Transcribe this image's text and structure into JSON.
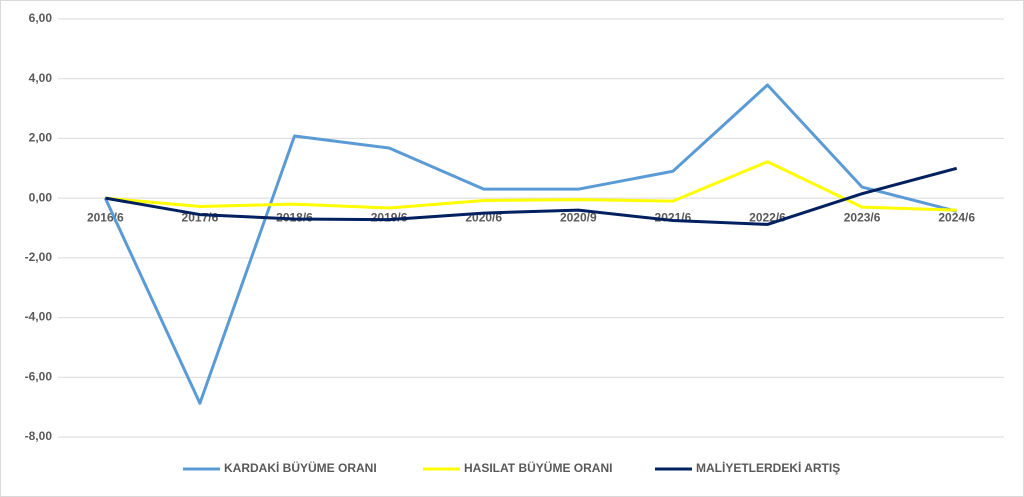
{
  "chart_data": {
    "type": "line",
    "categories": [
      "2016/6",
      "2017/6",
      "2018/6",
      "2019/6",
      "2020/6",
      "2020/9",
      "2021/6",
      "2022/6",
      "2023/6",
      "2024/6"
    ],
    "series": [
      {
        "name": "KARDAKİ BÜYÜME ORANI",
        "color": "#5b9bd5",
        "values": [
          0,
          -6.87,
          2.08,
          1.68,
          0.3,
          0.3,
          0.9,
          3.79,
          0.37,
          -0.44
        ]
      },
      {
        "name": "HASILAT BÜYÜME ORANI",
        "color": "#ffff00",
        "values": [
          0,
          -0.28,
          -0.2,
          -0.33,
          -0.08,
          -0.05,
          -0.1,
          1.22,
          -0.3,
          -0.4
        ]
      },
      {
        "name": "MALİYETLERDEKİ ARTIŞ",
        "color": "#002060",
        "values": [
          0,
          -0.55,
          -0.7,
          -0.72,
          -0.5,
          -0.4,
          -0.75,
          -0.88,
          0.15,
          1.0
        ]
      }
    ],
    "ylim": [
      -8,
      6
    ],
    "yticks": [
      {
        "value": -8,
        "label": "-8,00"
      },
      {
        "value": -6,
        "label": "-6,00"
      },
      {
        "value": -4,
        "label": "-4,00"
      },
      {
        "value": -2,
        "label": "-2,00"
      },
      {
        "value": 0,
        "label": "0,00"
      },
      {
        "value": 2,
        "label": "2,00"
      },
      {
        "value": 4,
        "label": "4,00"
      },
      {
        "value": 6,
        "label": "6,00"
      }
    ],
    "grid": true,
    "legend": "bottom"
  }
}
